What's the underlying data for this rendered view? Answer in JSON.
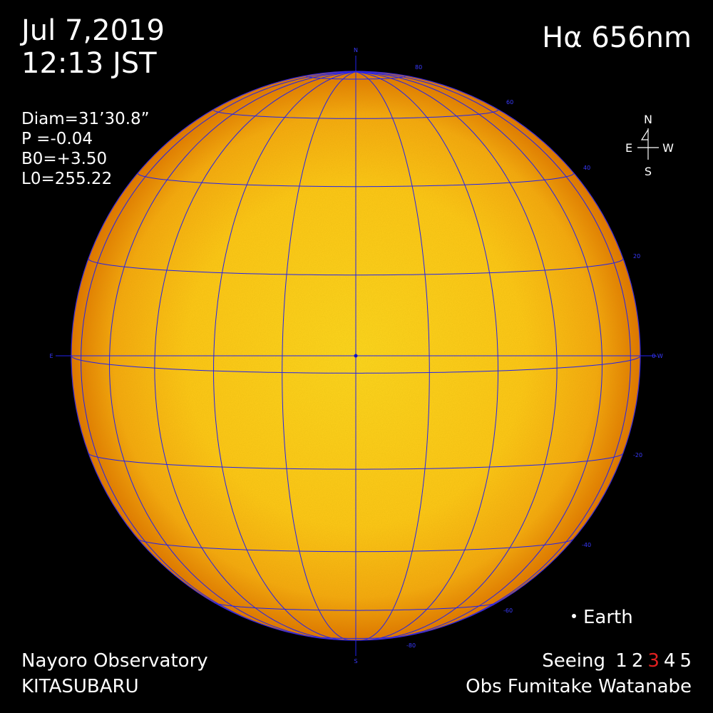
{
  "header": {
    "date": "Jul 7,2019",
    "time": "12:13 JST",
    "filter": "Hα 656nm"
  },
  "params": {
    "diam": "Diam=31’30.8”",
    "p": "P  =-0.04",
    "b0": "B0=+3.50",
    "l0": "L0=255.22"
  },
  "compass": {
    "n": "N",
    "s": "S",
    "e": "E",
    "w": "W"
  },
  "disk_labels": {
    "north": "N",
    "south": "S",
    "east": "E",
    "west": "0-W",
    "lat_north": [
      "80",
      "60",
      "40",
      "20"
    ],
    "lat_south": [
      "-20",
      "-40",
      "-60",
      "-80"
    ]
  },
  "earth": {
    "label": "Earth"
  },
  "footer": {
    "observatory": "Nayoro Observatory",
    "site": "KITASUBARU",
    "seeing_label": "Seeing",
    "seeing_scale": [
      "1",
      "2",
      "3",
      "4",
      "5"
    ],
    "seeing_selected": "3",
    "observer": "Obs Fumitake Watanabe"
  },
  "colors": {
    "sun_center": "#ffd21a",
    "sun_limb": "#e07000",
    "grid": "#2222ee",
    "seeing_highlight": "#e02020"
  }
}
